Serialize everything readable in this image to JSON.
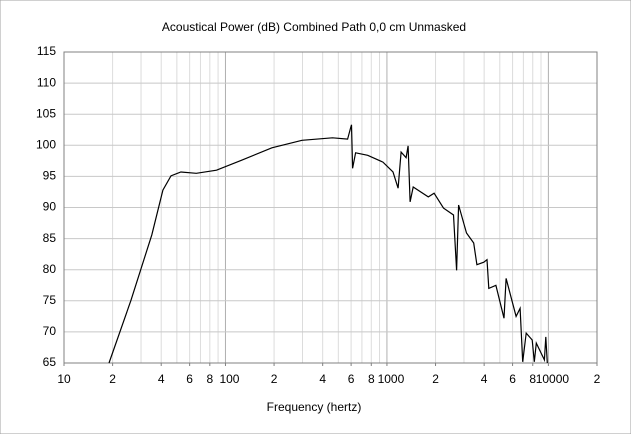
{
  "chart_data": {
    "type": "line",
    "title": "Acoustical Power (dB)    Combined    Path 0,0 cm    Unmasked",
    "x_label": "Frequency (hertz)",
    "log_x": true,
    "grid": true,
    "xlim": [
      10,
      20000
    ],
    "xticks": [
      10,
      {
        "value": 20,
        "label": "2"
      },
      {
        "value": 40,
        "label": "4"
      },
      {
        "value": 60,
        "label": "6"
      },
      {
        "value": 80,
        "label": "8"
      },
      100,
      {
        "value": 200,
        "label": "2"
      },
      {
        "value": 400,
        "label": "4"
      },
      {
        "value": 600,
        "label": "6"
      },
      {
        "value": 800,
        "label": "8"
      },
      1000,
      {
        "value": 2000,
        "label": "2"
      },
      {
        "value": 4000,
        "label": "4"
      },
      {
        "value": 6000,
        "label": "6"
      },
      {
        "value": 8000,
        "label": "8"
      },
      10000,
      {
        "value": 20000,
        "label": "2"
      }
    ],
    "ylim": [
      65,
      115
    ],
    "yticks": [
      65,
      70,
      75,
      80,
      85,
      90,
      95,
      100,
      105,
      110,
      115
    ],
    "x": [
      19,
      26,
      35,
      41,
      46,
      53,
      66,
      88,
      126,
      194,
      298,
      460,
      571,
      596,
      603,
      613,
      640,
      760,
      944,
      1090,
      1172,
      1224,
      1315,
      1352,
      1392,
      1454,
      1803,
      1960,
      2239,
      2585,
      2700,
      2778,
      3110,
      3447,
      3610,
      3981,
      4169,
      4276,
      4732,
      5309,
      5470,
      6310,
      6683,
      6930,
      7290,
      7943,
      8176,
      8414,
      9441,
      9638,
      9840
    ],
    "series": [
      {
        "color": "#000000",
        "values": [
          65,
          75.1,
          85.6,
          92.8,
          95.1,
          95.7,
          95.5,
          96.0,
          97.6,
          99.6,
          100.8,
          101.2,
          101.0,
          102.8,
          103.3,
          96.3,
          98.8,
          98.4,
          97.3,
          95.7,
          93.1,
          98.9,
          98.0,
          99.9,
          90.9,
          93.3,
          91.7,
          92.3,
          89.9,
          88.8,
          79.9,
          90.4,
          85.9,
          84.3,
          80.8,
          81.2,
          81.6,
          77.0,
          77.5,
          72.2,
          78.6,
          72.5,
          73.8,
          65.2,
          69.8,
          68.7,
          65.2,
          68.2,
          65.5,
          69.2,
          65
        ]
      }
    ]
  }
}
